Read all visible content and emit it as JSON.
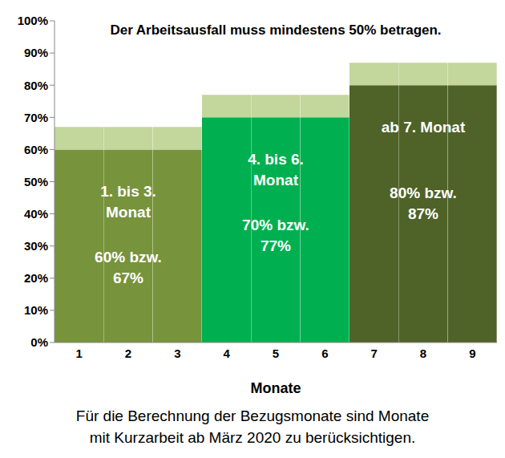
{
  "chart_data": {
    "type": "bar",
    "title": "Der Arbeitsausfall muss mindestens 50% betragen.",
    "x_label": "Monate",
    "note": [
      "Für die Berechnung der Bezugsmonate sind Monate",
      "mit Kurzarbeit ab März 2020 zu berücksichtigen."
    ],
    "categories": [
      "1",
      "2",
      "3",
      "4",
      "5",
      "6",
      "7",
      "8",
      "9"
    ],
    "stacked": true,
    "grid": false,
    "series": [
      {
        "values": [
          60,
          60,
          60,
          70,
          70,
          70,
          80,
          80,
          80
        ],
        "colors": [
          "#77933c",
          "#77933c",
          "#77933c",
          "#00b050",
          "#00b050",
          "#00b050",
          "#4f6228",
          "#4f6228",
          "#4f6228"
        ]
      },
      {
        "values": [
          7,
          7,
          7,
          7,
          7,
          7,
          7,
          7,
          7
        ],
        "color": "#c3d69b"
      }
    ],
    "ylim": [
      0,
      100
    ],
    "yticks": [
      {
        "value": 0,
        "label": "0%"
      },
      {
        "value": 10,
        "label": "10%"
      },
      {
        "value": 20,
        "label": "20%"
      },
      {
        "value": 30,
        "label": "30%"
      },
      {
        "value": 40,
        "label": "40%"
      },
      {
        "value": 50,
        "label": "50%"
      },
      {
        "value": 60,
        "label": "60%"
      },
      {
        "value": 70,
        "label": "70%"
      },
      {
        "value": 80,
        "label": "80%"
      },
      {
        "value": 90,
        "label": "90%"
      },
      {
        "value": 100,
        "label": "100%"
      }
    ],
    "annotations": [
      {
        "lines": [
          "1. bis 3.",
          "Monat"
        ],
        "value_lines": [
          "60% bzw.",
          "67%"
        ]
      },
      {
        "lines": [
          "4. bis 6.",
          "Monat"
        ],
        "value_lines": [
          "70% bzw.",
          "77%"
        ]
      },
      {
        "lines": [
          "ab 7. Monat"
        ],
        "value_lines": [
          "80% bzw.",
          "87%"
        ]
      }
    ]
  }
}
